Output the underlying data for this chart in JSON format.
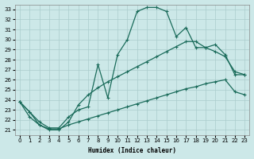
{
  "xlabel": "Humidex (Indice chaleur)",
  "background_color": "#cce8e8",
  "grid_color": "#aacccc",
  "line_color": "#1a6b5a",
  "xlim": [
    -0.5,
    23.5
  ],
  "ylim": [
    20.5,
    33.5
  ],
  "xticks": [
    0,
    1,
    2,
    3,
    4,
    5,
    6,
    7,
    8,
    9,
    10,
    11,
    12,
    13,
    14,
    15,
    16,
    17,
    18,
    19,
    20,
    21,
    22,
    23
  ],
  "yticks": [
    21,
    22,
    23,
    24,
    25,
    26,
    27,
    28,
    29,
    30,
    31,
    32,
    33
  ],
  "curve1_x": [
    0,
    1,
    2,
    3,
    4,
    5,
    6,
    7,
    8,
    9,
    10,
    11,
    12,
    13,
    14,
    15,
    16,
    17,
    18,
    19,
    20,
    21,
    22,
    23
  ],
  "curve1_y": [
    23.8,
    22.8,
    21.8,
    21.2,
    21.2,
    22.3,
    23.0,
    23.3,
    27.5,
    24.2,
    28.5,
    30.0,
    32.8,
    33.2,
    33.2,
    32.8,
    30.3,
    31.2,
    29.2,
    29.2,
    29.5,
    28.5,
    26.5,
    26.5
  ],
  "curve2_x": [
    0,
    1,
    2,
    3,
    4,
    5,
    6,
    7,
    8,
    9,
    10,
    11,
    12,
    13,
    14,
    15,
    16,
    17,
    18,
    19,
    20,
    21,
    22,
    23
  ],
  "curve2_y": [
    23.8,
    22.8,
    21.5,
    21.0,
    21.0,
    21.8,
    23.5,
    24.5,
    25.2,
    25.8,
    26.3,
    26.8,
    27.3,
    27.8,
    28.3,
    28.8,
    29.3,
    29.8,
    29.8,
    29.2,
    28.8,
    28.3,
    26.8,
    26.5
  ],
  "curve3_x": [
    0,
    1,
    2,
    3,
    4,
    5,
    6,
    7,
    8,
    9,
    10,
    11,
    12,
    13,
    14,
    15,
    16,
    17,
    18,
    19,
    20,
    21,
    22,
    23
  ],
  "curve3_y": [
    23.8,
    22.3,
    21.5,
    21.1,
    21.1,
    21.5,
    21.8,
    22.1,
    22.4,
    22.7,
    23.0,
    23.3,
    23.6,
    23.9,
    24.2,
    24.5,
    24.8,
    25.1,
    25.3,
    25.6,
    25.8,
    26.0,
    24.8,
    24.5
  ]
}
